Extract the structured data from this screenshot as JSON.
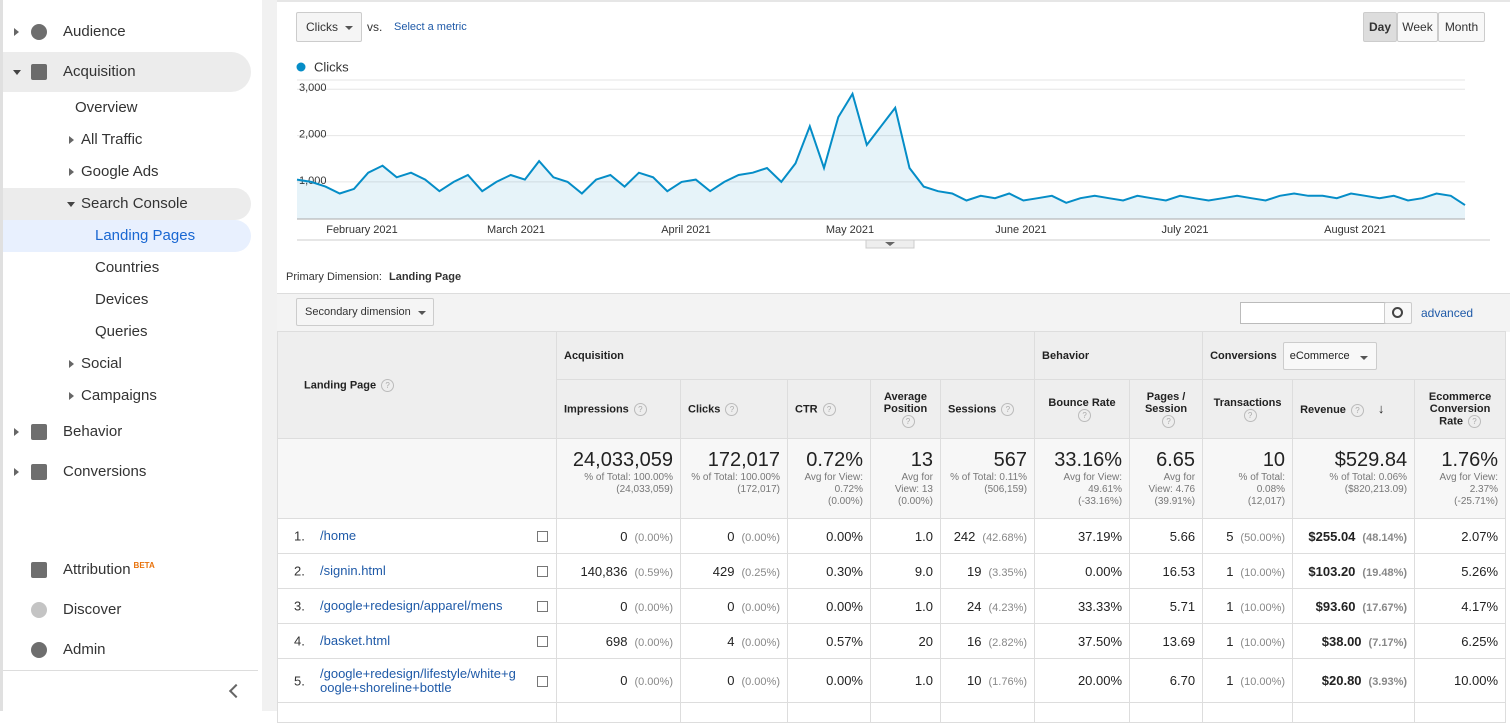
{
  "sidebar": {
    "items": [
      "Audience",
      "Acquisition",
      "Overview",
      "All Traffic",
      "Google Ads",
      "Search Console",
      "Landing Pages",
      "Countries",
      "Devices",
      "Queries",
      "Social",
      "Campaigns",
      "Behavior",
      "Conversions",
      "Attribution",
      "Discover",
      "Admin"
    ],
    "badge": "BETA"
  },
  "toolbar": {
    "metric": "Clicks",
    "vs": "vs.",
    "select_metric": "Select a metric",
    "intervals": [
      "Day",
      "Week",
      "Month"
    ]
  },
  "chart_data": {
    "type": "line",
    "series": [
      {
        "name": "Clicks",
        "color": "#058dc7",
        "values": [
          1050,
          1000,
          900,
          750,
          850,
          1200,
          1350,
          1100,
          1200,
          1050,
          800,
          1000,
          1150,
          800,
          1000,
          1150,
          1050,
          1450,
          1100,
          1000,
          750,
          1050,
          1150,
          900,
          1200,
          1100,
          800,
          1000,
          1050,
          800,
          1000,
          1150,
          1200,
          1300,
          1000,
          1400,
          2200,
          1300,
          2400,
          2900,
          1800,
          2200,
          2600,
          1300,
          900,
          800,
          750,
          600,
          700,
          650,
          750,
          600,
          650,
          700,
          550,
          650,
          700,
          650,
          600,
          700,
          650,
          600,
          700,
          650,
          600,
          650,
          700,
          650,
          600,
          700,
          750,
          700,
          700,
          650,
          750,
          700,
          650,
          700,
          600,
          650,
          750,
          700,
          500
        ]
      }
    ],
    "ylim": [
      200,
      3200
    ],
    "yticks": [
      {
        "value": 1000,
        "label": "1,000"
      },
      {
        "value": 2000,
        "label": "2,000"
      },
      {
        "value": 3000,
        "label": "3,000"
      }
    ],
    "x_axis_labels": [
      "February 2021",
      "March 2021",
      "April 2021",
      "May 2021",
      "June 2021",
      "July 2021",
      "August 2021"
    ],
    "grid": true
  },
  "table": {
    "primary_dimension_label": "Primary Dimension:",
    "primary_dimension": "Landing Page",
    "secondary_dimension": "Secondary dimension",
    "advanced": "advanced",
    "groups": [
      "Acquisition",
      "Behavior",
      "Conversions"
    ],
    "conversion_select": "eCommerce",
    "columns": [
      "Landing Page",
      "Impressions",
      "Clicks",
      "CTR",
      "Average Position",
      "Sessions",
      "Bounce Rate",
      "Pages / Session",
      "Transactions",
      "Revenue",
      "Ecommerce Conversion Rate"
    ],
    "totals": [
      [
        "24,033,059",
        "% of Total: 100.00%",
        "(24,033,059)"
      ],
      [
        "172,017",
        "% of Total: 100.00%",
        "(172,017)"
      ],
      [
        "0.72%",
        "Avg for View: 0.72%",
        "(0.00%)"
      ],
      [
        "13",
        "Avg for View: 13",
        "(0.00%)"
      ],
      [
        "567",
        "% of Total: 0.11%",
        "(506,159)"
      ],
      [
        "33.16%",
        "Avg for View: 49.61%",
        "(-33.16%)"
      ],
      [
        "6.65",
        "Avg for View: 4.76",
        "(39.91%)"
      ],
      [
        "10",
        "% of Total: 0.08%",
        "(12,017)"
      ],
      [
        "$529.84",
        "% of Total: 0.06%",
        "($820,213.09)"
      ],
      [
        "1.76%",
        "Avg for View: 2.37%",
        "(-25.71%)"
      ]
    ],
    "rows": [
      {
        "index": "1.",
        "page": "/home",
        "cells": [
          [
            "0",
            "(0.00%)"
          ],
          [
            "0",
            "(0.00%)"
          ],
          [
            "0.00%"
          ],
          [
            "1.0"
          ],
          [
            "242",
            "(42.68%)"
          ],
          [
            "37.19%"
          ],
          [
            "5.66"
          ],
          [
            "5",
            "(50.00%)"
          ],
          [
            "$255.04",
            "(48.14%)"
          ],
          [
            "2.07%"
          ]
        ]
      },
      {
        "index": "2.",
        "page": "/signin.html",
        "cells": [
          [
            "140,836",
            "(0.59%)"
          ],
          [
            "429",
            "(0.25%)"
          ],
          [
            "0.30%"
          ],
          [
            "9.0"
          ],
          [
            "19",
            "(3.35%)"
          ],
          [
            "0.00%"
          ],
          [
            "16.53"
          ],
          [
            "1",
            "(10.00%)"
          ],
          [
            "$103.20",
            "(19.48%)"
          ],
          [
            "5.26%"
          ]
        ]
      },
      {
        "index": "3.",
        "page": "/google+redesign/apparel/mens",
        "cells": [
          [
            "0",
            "(0.00%)"
          ],
          [
            "0",
            "(0.00%)"
          ],
          [
            "0.00%"
          ],
          [
            "1.0"
          ],
          [
            "24",
            "(4.23%)"
          ],
          [
            "33.33%"
          ],
          [
            "5.71"
          ],
          [
            "1",
            "(10.00%)"
          ],
          [
            "$93.60",
            "(17.67%)"
          ],
          [
            "4.17%"
          ]
        ]
      },
      {
        "index": "4.",
        "page": "/basket.html",
        "cells": [
          [
            "698",
            "(0.00%)"
          ],
          [
            "4",
            "(0.00%)"
          ],
          [
            "0.57%"
          ],
          [
            "20"
          ],
          [
            "16",
            "(2.82%)"
          ],
          [
            "37.50%"
          ],
          [
            "13.69"
          ],
          [
            "1",
            "(10.00%)"
          ],
          [
            "$38.00",
            "(7.17%)"
          ],
          [
            "6.25%"
          ]
        ]
      },
      {
        "index": "5.",
        "page": "/google+redesign/lifestyle/white+google+shoreline+bottle",
        "cells": [
          [
            "0",
            "(0.00%)"
          ],
          [
            "0",
            "(0.00%)"
          ],
          [
            "0.00%"
          ],
          [
            "1.0"
          ],
          [
            "10",
            "(1.76%)"
          ],
          [
            "20.00%"
          ],
          [
            "6.70"
          ],
          [
            "1",
            "(10.00%)"
          ],
          [
            "$20.80",
            "(3.93%)"
          ],
          [
            "10.00%"
          ]
        ]
      }
    ]
  }
}
